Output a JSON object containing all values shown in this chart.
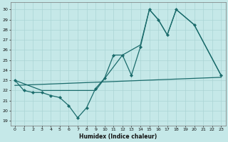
{
  "xlabel": "Humidex (Indice chaleur)",
  "background_color": "#c5e8e8",
  "grid_color": "#aad4d4",
  "line_color": "#1a6b6b",
  "xlim": [
    -0.5,
    23.5
  ],
  "ylim": [
    18.5,
    30.7
  ],
  "xticks": [
    0,
    1,
    2,
    3,
    4,
    5,
    6,
    7,
    8,
    9,
    10,
    11,
    12,
    13,
    14,
    15,
    16,
    17,
    18,
    19,
    20,
    21,
    22,
    23
  ],
  "yticks": [
    19,
    20,
    21,
    22,
    23,
    24,
    25,
    26,
    27,
    28,
    29,
    30
  ],
  "series_zigzag": {
    "x": [
      0,
      1,
      2,
      3,
      4,
      5,
      6,
      7,
      8,
      9,
      10,
      11,
      12,
      13,
      14,
      15,
      16,
      17,
      18,
      20,
      23
    ],
    "y": [
      23,
      22,
      21.8,
      21.8,
      21.5,
      21.3,
      20.5,
      19.3,
      20.3,
      22.2,
      23.2,
      25.5,
      25.5,
      23.5,
      26.3,
      30,
      29,
      27.5,
      30,
      28.5,
      23.5
    ]
  },
  "series_diagonal": {
    "x": [
      0,
      3,
      9,
      12,
      13,
      14,
      15,
      16,
      17,
      18,
      20,
      23
    ],
    "y": [
      23,
      22,
      22,
      25.5,
      26,
      26.5,
      30,
      29,
      27.5,
      30,
      28.5,
      23.5
    ]
  },
  "series_flat": {
    "x": [
      0,
      23
    ],
    "y": [
      22.5,
      23.3
    ]
  }
}
